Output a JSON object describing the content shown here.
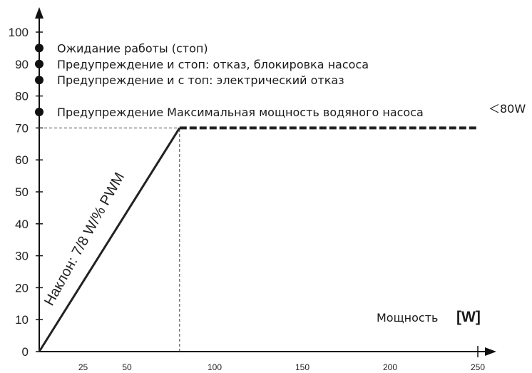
{
  "chart_data": {
    "type": "line",
    "ylim": [
      0,
      100
    ],
    "y_ticks": [
      "0",
      "10",
      "20",
      "30",
      "40",
      "50",
      "60",
      "70",
      "80",
      "90",
      "100"
    ],
    "x_ticks": [
      "25",
      "50",
      "100",
      "150",
      "200",
      "250"
    ],
    "x_tick_values": [
      25,
      50,
      100,
      150,
      200,
      250
    ],
    "xlim": [
      0,
      250
    ],
    "x_axis_label": "Мощность",
    "x_axis_unit": "[W]",
    "series": [
      {
        "x": [
          0,
          80
        ],
        "y": [
          0,
          70
        ],
        "style": "solid"
      },
      {
        "x": [
          80,
          250
        ],
        "y": [
          70,
          70
        ],
        "style": "dashed"
      }
    ],
    "reference_lines": [
      {
        "orientation": "horizontal",
        "y": 70,
        "x_range": [
          0,
          80
        ],
        "style": "thin-dashed"
      },
      {
        "orientation": "vertical",
        "x": 80,
        "y_range": [
          0,
          70
        ],
        "style": "thin-dashed"
      }
    ],
    "markers": [
      {
        "y": 95,
        "label": "Ожидание работы (стоп)"
      },
      {
        "y": 90,
        "label": "Предупреждение и стоп: отказ, блокировка насоса"
      },
      {
        "y": 85,
        "label": "Предупреждение и с топ: электрический отказ"
      },
      {
        "y": 75,
        "label": "Предупреждение  Максимальная мощность водяного насоса"
      }
    ],
    "annotation_right": "＜80W",
    "slope_label": "Наклон: 7/8 W/% PWM",
    "grid": false
  }
}
